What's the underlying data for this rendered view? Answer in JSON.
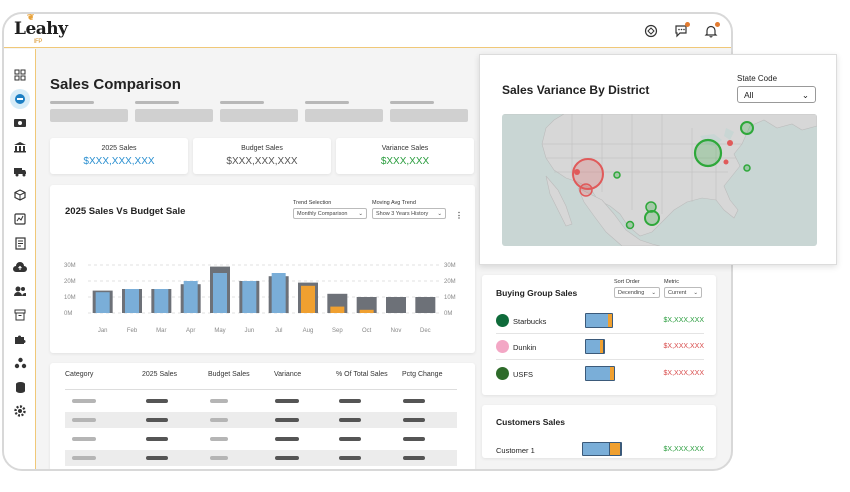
{
  "app": {
    "logo_text": "Leahy",
    "logo_sub": "IFP",
    "page_title": "Sales Comparison"
  },
  "kpis": [
    {
      "label": "2025 Sales",
      "value": "$XXX,XXX,XXX",
      "color": "#2a8fd0"
    },
    {
      "label": "Budget Sales",
      "value": "$XXX,XXX,XXX",
      "color": "#555555"
    },
    {
      "label": "Variance Sales",
      "value": "$XXX,XXX",
      "color": "#2a9d3e"
    }
  ],
  "sales_chart": {
    "title": "2025 Sales Vs Budget Sale",
    "trend_selection_label": "Trend Selection",
    "trend_selection_value": "Monthly Comparison",
    "moving_avg_label": "Moving Avg Trend",
    "moving_avg_value": "Show 3 Years History",
    "y_ticks_left": [
      "30M",
      "20M",
      "10M",
      "0M"
    ],
    "y_ticks_right": [
      "30M",
      "20M",
      "10M",
      "0M"
    ]
  },
  "chart_data": {
    "type": "bar",
    "categories": [
      "Jan",
      "Feb",
      "Mar",
      "Apr",
      "May",
      "Jun",
      "Jul",
      "Aug",
      "Sep",
      "Oct",
      "Nov",
      "Dec"
    ],
    "series": [
      {
        "values": [
          14,
          15,
          15,
          18,
          29,
          20,
          23,
          19,
          12,
          10,
          10,
          10
        ]
      },
      {
        "values": [
          13,
          15,
          15,
          20,
          25,
          20,
          25,
          17,
          4,
          2,
          0,
          0
        ]
      }
    ],
    "ylim": [
      0,
      30
    ]
  },
  "table": {
    "headers": [
      "Category",
      "2025 Sales",
      "Budget Sales",
      "Variance",
      "% Of Total Sales",
      "Pctg Change"
    ],
    "row_count": 4
  },
  "map_card": {
    "title": "Sales Variance By District",
    "state_code_label": "State Code",
    "state_code_value": "All",
    "colors": {
      "positive": "#2ea83a",
      "negative": "#e05a5a",
      "water": "#c9d6d4",
      "land": "#d7d7d7"
    }
  },
  "buying_group": {
    "title": "Buying Group Sales",
    "sort_order_label": "Sort Order",
    "sort_order_value": "Decending",
    "metric_label": "Metric",
    "metric_value": "Current",
    "rows": [
      {
        "name": "Starbucks",
        "amount": "$X,XXX,XXX",
        "positive": true,
        "fill": 0.82,
        "over": 0.12
      },
      {
        "name": "Dunkin",
        "amount": "$X,XXX,XXX",
        "positive": false,
        "fill": 0.62,
        "over": 0.1
      },
      {
        "name": "USFS",
        "amount": "$X,XXX,XXX",
        "positive": false,
        "fill": 0.86,
        "over": 0.1
      }
    ]
  },
  "customers": {
    "title": "Customers Sales",
    "rows": [
      {
        "name": "Customer 1",
        "amount": "$X,XXX,XXX",
        "fill": 0.7,
        "over": 0.2
      }
    ]
  }
}
